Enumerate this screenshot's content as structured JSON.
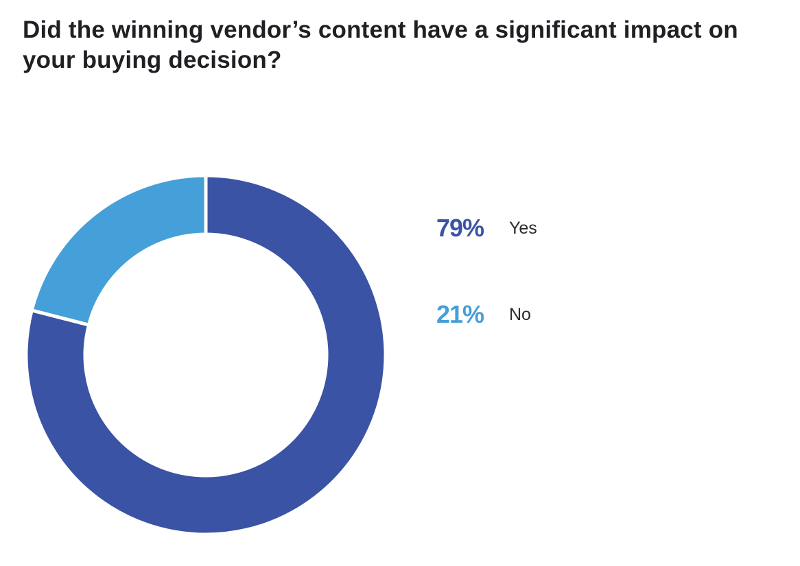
{
  "chart_data": {
    "type": "pie",
    "variant": "donut",
    "title": "Did the winning vendor’s content have a significant impact on your buying decision?",
    "categories": [
      "Yes",
      "No"
    ],
    "values": [
      79,
      21
    ],
    "unit": "%",
    "labels": [
      "79%",
      "21%"
    ],
    "colors": [
      "#3a53a4",
      "#459fd8"
    ],
    "legend_position": "right"
  }
}
